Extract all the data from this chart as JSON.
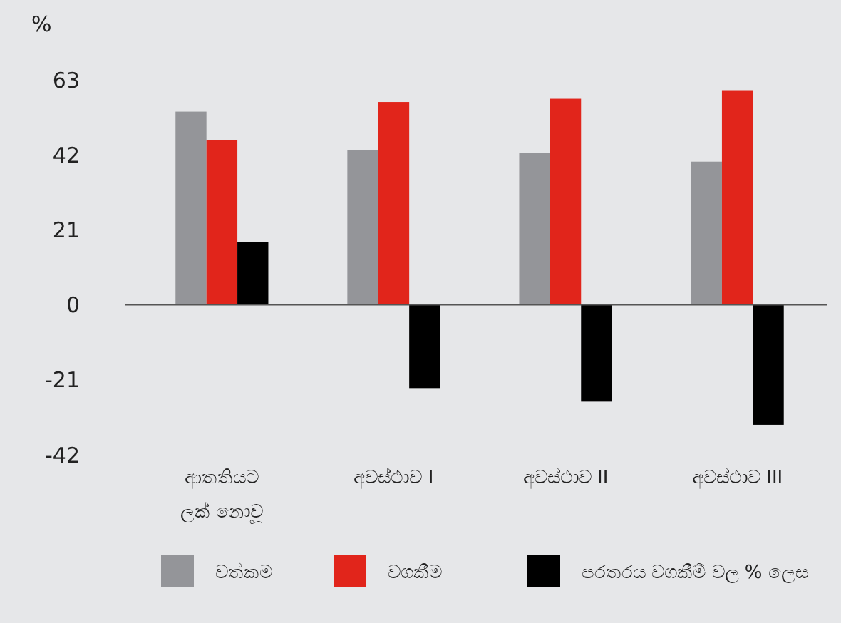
{
  "chart_data": {
    "type": "bar",
    "ylabel": "%",
    "categories": [
      "ආතතියට ලක් නොවූ",
      "අවස්ථාව I",
      "අවස්ථාව II",
      "අවස්ථාව III"
    ],
    "series": [
      {
        "name": "වත්කම",
        "color": "#949599",
        "values": [
          54.1,
          43.3,
          42.5,
          40.1
        ]
      },
      {
        "name": "වගකීම",
        "color": "#e1251b",
        "values": [
          46.1,
          56.8,
          57.7,
          60.1
        ]
      },
      {
        "name": "පරතරය වගකීම් වල % ලෙස",
        "color": "#000000",
        "values": [
          17.6,
          -23.5,
          -27.1,
          -33.6
        ]
      }
    ],
    "ylim": [
      -42,
      63
    ],
    "yticks": [
      -42,
      -21,
      0,
      21,
      42,
      63
    ],
    "grid": false,
    "legend": "bottom",
    "ref_lines": [
      {
        "axis": "y",
        "value": 0,
        "color": "#555555"
      }
    ]
  }
}
